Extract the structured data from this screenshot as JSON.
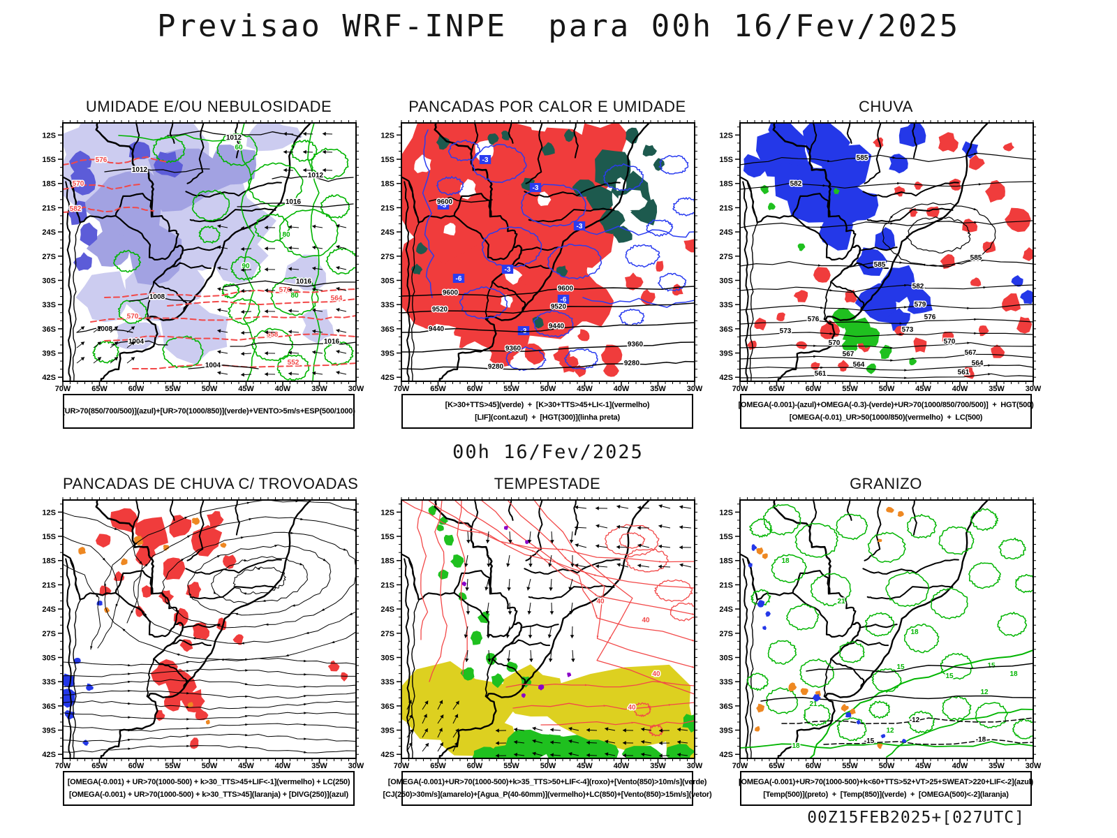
{
  "title": "Previsao WRF-INPE  para 00h 16/Fev/2025",
  "subtitle": "00h 16/Fev/2025",
  "footer": "00Z15FEB2025+[027UTC]",
  "axes": {
    "lat": [
      "12S",
      "15S",
      "18S",
      "21S",
      "24S",
      "27S",
      "30S",
      "33S",
      "36S",
      "39S",
      "42S"
    ],
    "lon": [
      "70W",
      "65W",
      "60W",
      "55W",
      "50W",
      "45W",
      "40W",
      "35W",
      "30W"
    ]
  },
  "colors": {
    "red": "#f03c3c",
    "teal": "#1d5a4e",
    "blue": "#2438e8",
    "blueline": "#2a3cf0",
    "green": "#00b400",
    "greenfill": "#1fc01f",
    "shade1": "#ccccf0",
    "shade2": "#a2a2e2",
    "shade3": "#5c5cd8",
    "redline": "#f24848",
    "yellow": "#ddd020",
    "orange": "#ee8822",
    "purple": "#8a00c8"
  },
  "panels": [
    {
      "id": "umidade",
      "title": "UMIDADE E/OU NEBULOSIDADE",
      "caption1": "[UR>70(850/700/500)](azul)+[UR>70(1000/850)](verde)+VENTO>5m/s+ESP(500/1000)",
      "caption2": "",
      "labels": {
        "black": [
          "1012",
          "1012",
          "1012",
          "1016",
          "1016",
          "1016",
          "1008",
          "1008",
          "1004",
          "1004"
        ],
        "red": [
          "576",
          "570",
          "582",
          "576",
          "570",
          "564",
          "558",
          "552"
        ],
        "green": [
          "90",
          "80",
          "80",
          "60"
        ]
      }
    },
    {
      "id": "pancadas-calor",
      "title": "PANCADAS POR CALOR E UMIDADE",
      "caption1": "[K>30+TTS>45](verde)  +  [K>30+TTS>45+LI<-1](vermelho)",
      "caption2": "[LIF](cont.azul)  +  [HGT(300)](linha preta)",
      "labels": {
        "hgt": [
          "9600",
          "9600",
          "9600",
          "9520",
          "9520",
          "9440",
          "9440",
          "9360",
          "9360",
          "9280",
          "9280"
        ],
        "lif": [
          "-3",
          "-3",
          "-3",
          "-3",
          "-6",
          "-6",
          "-3",
          "-3"
        ]
      }
    },
    {
      "id": "chuva",
      "title": "CHUVA",
      "caption1": "[OMEGA(-0.001)-(azul)+OMEGA(-0.3)-(verde)+UR>70(1000/850/700/500)]  +  HGT(500)",
      "caption2": "[OMEGA(-0.01)_UR>50(1000/850)(vermelho)  +  LC(500)",
      "labels": {
        "hgt500": [
          "585",
          "582",
          "585",
          "585",
          "582",
          "579",
          "576",
          "576",
          "573",
          "573",
          "570",
          "570",
          "567",
          "567",
          "564",
          "564",
          "561",
          "561"
        ]
      }
    },
    {
      "id": "trovoadas",
      "title": "PANCADAS DE CHUVA C/ TROVOADAS",
      "caption1": "[OMEGA(-0.001) + UR>70(1000-500) + k>30_TTS>45+LIF<-1](vermelho) + LC(250)",
      "caption2": "[OMEGA(-0.001) + UR>70(1000-500) + k>30_TTS>45](laranja) + [DIVG(250)](azul)",
      "labels": {}
    },
    {
      "id": "tempestade",
      "title": "TEMPESTADE",
      "caption1": "[OMEGA(-0.001)+UR>70(1000-500)+k>35_TTS>50+LIF<-4](roxo)+[Vento(850)>10m/s](verde)",
      "caption2": "[CJ(250)>30m/s](amarelo)+[Agua_P(40-60mm)](vermelho)+LC(850)+[Vento(850)>15m/s](vetor)",
      "labels": {
        "agua": [
          "40",
          "40",
          "40",
          "40"
        ]
      }
    },
    {
      "id": "granizo",
      "title": "GRANIZO",
      "caption1": "[OMEGA(-0.001)+UR>70(1000-500)+k<60+TTS>52+VT>25+SWEAT>220+LIF<-2](azul)",
      "caption2": "[Temp(500)](preto)  +  [Temp(850)](verde)  +  [OMEGA(500)<-2](laranja)",
      "labels": {
        "temp850": [
          "18",
          "21",
          "18",
          "15",
          "21",
          "18",
          "15",
          "12",
          "12",
          "15",
          "18"
        ],
        "temp500": [
          "-12",
          "-15",
          "-18"
        ]
      }
    }
  ]
}
